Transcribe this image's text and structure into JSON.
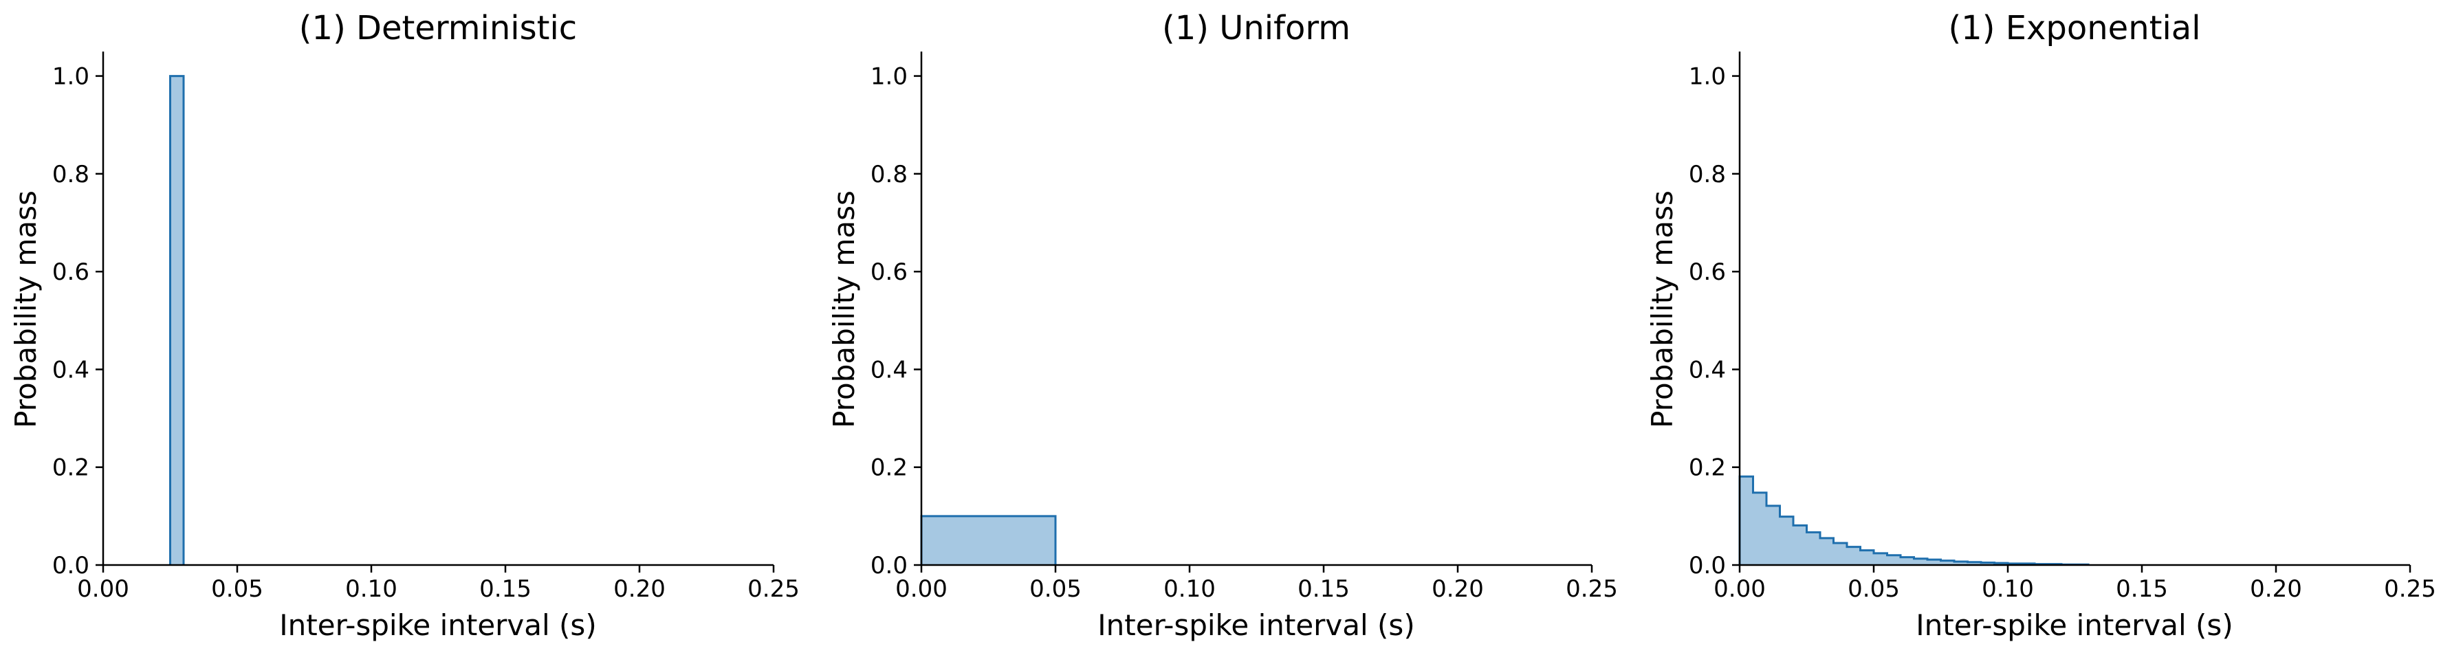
{
  "chart_data": [
    {
      "type": "histogram",
      "title": "(1) Deterministic",
      "xlabel": "Inter-spike interval (s)",
      "ylabel": "Probability mass",
      "xlim": [
        0,
        0.25
      ],
      "ylim": [
        0,
        1.05
      ],
      "xticks": [
        "0.00",
        "0.05",
        "0.10",
        "0.15",
        "0.20",
        "0.25"
      ],
      "yticks": [
        "0.0",
        "0.2",
        "0.4",
        "0.6",
        "0.8",
        "1.0"
      ],
      "grid": false,
      "fill_color": "#a6c8e2",
      "edge_color": "#1f6fad",
      "bins": [
        {
          "x0": 0.025,
          "x1": 0.03,
          "value": 1.0
        }
      ]
    },
    {
      "type": "histogram",
      "title": "(1) Uniform",
      "xlabel": "Inter-spike interval (s)",
      "ylabel": "Probability mass",
      "xlim": [
        0,
        0.25
      ],
      "ylim": [
        0,
        1.05
      ],
      "xticks": [
        "0.00",
        "0.05",
        "0.10",
        "0.15",
        "0.20",
        "0.25"
      ],
      "yticks": [
        "0.0",
        "0.2",
        "0.4",
        "0.6",
        "0.8",
        "1.0"
      ],
      "grid": false,
      "fill_color": "#a6c8e2",
      "edge_color": "#1f6fad",
      "bins": [
        {
          "x0": 0.0,
          "x1": 0.005,
          "value": 0.1
        },
        {
          "x0": 0.005,
          "x1": 0.01,
          "value": 0.1
        },
        {
          "x0": 0.01,
          "x1": 0.015,
          "value": 0.1
        },
        {
          "x0": 0.015,
          "x1": 0.02,
          "value": 0.1
        },
        {
          "x0": 0.02,
          "x1": 0.025,
          "value": 0.1
        },
        {
          "x0": 0.025,
          "x1": 0.03,
          "value": 0.1
        },
        {
          "x0": 0.03,
          "x1": 0.035,
          "value": 0.1
        },
        {
          "x0": 0.035,
          "x1": 0.04,
          "value": 0.1
        },
        {
          "x0": 0.04,
          "x1": 0.045,
          "value": 0.1
        },
        {
          "x0": 0.045,
          "x1": 0.05,
          "value": 0.1
        }
      ]
    },
    {
      "type": "histogram",
      "title": "(1) Exponential",
      "xlabel": "Inter-spike interval (s)",
      "ylabel": "Probability mass",
      "xlim": [
        0,
        0.25
      ],
      "ylim": [
        0,
        1.05
      ],
      "xticks": [
        "0.00",
        "0.05",
        "0.10",
        "0.15",
        "0.20",
        "0.25"
      ],
      "yticks": [
        "0.0",
        "0.2",
        "0.4",
        "0.6",
        "0.8",
        "1.0"
      ],
      "grid": false,
      "fill_color": "#a6c8e2",
      "edge_color": "#1f6fad",
      "bins": [
        {
          "x0": 0.0,
          "x1": 0.005,
          "value": 0.181
        },
        {
          "x0": 0.005,
          "x1": 0.01,
          "value": 0.148
        },
        {
          "x0": 0.01,
          "x1": 0.015,
          "value": 0.121
        },
        {
          "x0": 0.015,
          "x1": 0.02,
          "value": 0.099
        },
        {
          "x0": 0.02,
          "x1": 0.025,
          "value": 0.081
        },
        {
          "x0": 0.025,
          "x1": 0.03,
          "value": 0.067
        },
        {
          "x0": 0.03,
          "x1": 0.035,
          "value": 0.055
        },
        {
          "x0": 0.035,
          "x1": 0.04,
          "value": 0.045
        },
        {
          "x0": 0.04,
          "x1": 0.045,
          "value": 0.037
        },
        {
          "x0": 0.045,
          "x1": 0.05,
          "value": 0.03
        },
        {
          "x0": 0.05,
          "x1": 0.055,
          "value": 0.024
        },
        {
          "x0": 0.055,
          "x1": 0.06,
          "value": 0.02
        },
        {
          "x0": 0.06,
          "x1": 0.065,
          "value": 0.016
        },
        {
          "x0": 0.065,
          "x1": 0.07,
          "value": 0.013
        },
        {
          "x0": 0.07,
          "x1": 0.075,
          "value": 0.011
        },
        {
          "x0": 0.075,
          "x1": 0.08,
          "value": 0.009
        },
        {
          "x0": 0.08,
          "x1": 0.085,
          "value": 0.007
        },
        {
          "x0": 0.085,
          "x1": 0.09,
          "value": 0.006
        },
        {
          "x0": 0.09,
          "x1": 0.095,
          "value": 0.005
        },
        {
          "x0": 0.095,
          "x1": 0.1,
          "value": 0.004
        },
        {
          "x0": 0.1,
          "x1": 0.105,
          "value": 0.003
        },
        {
          "x0": 0.105,
          "x1": 0.11,
          "value": 0.003
        },
        {
          "x0": 0.11,
          "x1": 0.115,
          "value": 0.002
        },
        {
          "x0": 0.115,
          "x1": 0.12,
          "value": 0.002
        },
        {
          "x0": 0.12,
          "x1": 0.125,
          "value": 0.001
        },
        {
          "x0": 0.125,
          "x1": 0.13,
          "value": 0.001
        }
      ]
    }
  ]
}
